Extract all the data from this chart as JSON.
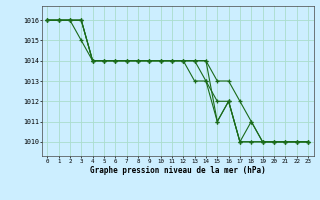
{
  "title": "Graphe pression niveau de la mer (hPa)",
  "background_color": "#cceeff",
  "grid_color": "#aaddcc",
  "line_color": "#1a6b1a",
  "xlim": [
    -0.5,
    23.5
  ],
  "ylim": [
    1009.3,
    1016.7
  ],
  "yticks": [
    1010,
    1011,
    1012,
    1013,
    1014,
    1015,
    1016
  ],
  "xticks": [
    0,
    1,
    2,
    3,
    4,
    5,
    6,
    7,
    8,
    9,
    10,
    11,
    12,
    13,
    14,
    15,
    16,
    17,
    18,
    19,
    20,
    21,
    22,
    23
  ],
  "series": [
    [
      1016,
      1016,
      1016,
      1016,
      1014,
      1014,
      1014,
      1014,
      1014,
      1014,
      1014,
      1014,
      1014,
      1014,
      1014,
      1013,
      1013,
      1012,
      1011,
      1010,
      1010,
      1010,
      1010,
      1010
    ],
    [
      1016,
      1016,
      1016,
      1015,
      1014,
      1014,
      1014,
      1014,
      1014,
      1014,
      1014,
      1014,
      1014,
      1013,
      1013,
      1011,
      1012,
      1010,
      1010,
      1010,
      1010,
      1010,
      1010,
      1010
    ],
    [
      1016,
      1016,
      1016,
      1016,
      1014,
      1014,
      1014,
      1014,
      1014,
      1014,
      1014,
      1014,
      1014,
      1014,
      1014,
      1011,
      1012,
      1010,
      1011,
      1010,
      1010,
      1010,
      1010,
      1010
    ],
    [
      1016,
      1016,
      1016,
      1016,
      1014,
      1014,
      1014,
      1014,
      1014,
      1014,
      1014,
      1014,
      1014,
      1014,
      1013,
      1012,
      1012,
      1010,
      1010,
      1010,
      1010,
      1010,
      1010,
      1010
    ]
  ]
}
